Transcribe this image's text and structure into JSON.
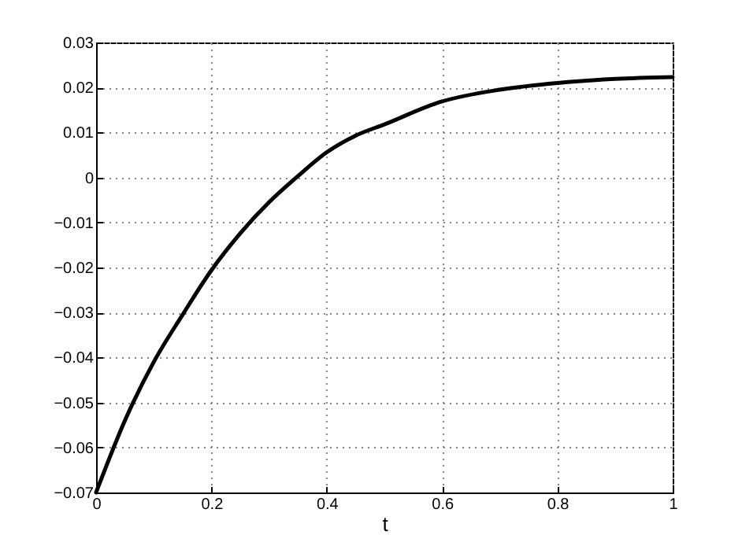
{
  "chart_data": {
    "type": "line",
    "xlabel": "t",
    "x": [
      0,
      0.05,
      0.1,
      0.15,
      0.2,
      0.25,
      0.3,
      0.35,
      0.4,
      0.45,
      0.5,
      0.6,
      0.7,
      0.8,
      0.9,
      1
    ],
    "series": [
      {
        "color": "#000000",
        "values": [
          -0.07,
          -0.054,
          -0.041,
          -0.0305,
          -0.0206,
          -0.0124,
          -0.0055,
          0.0003,
          0.0056,
          0.0093,
          0.0118,
          0.0169,
          0.0195,
          0.021,
          0.0219,
          0.0223
        ]
      }
    ],
    "xlim": [
      0,
      1
    ],
    "xticks": [
      0,
      0.2,
      0.4,
      0.6,
      0.8,
      1
    ],
    "ylim": [
      -0.07,
      0.03
    ],
    "yticks": [
      -0.07,
      -0.06,
      -0.05,
      -0.04,
      -0.03,
      -0.02,
      -0.01,
      0,
      0.01,
      0.02,
      0.03
    ],
    "grid": true,
    "line_style": "solid",
    "marker": "none"
  }
}
